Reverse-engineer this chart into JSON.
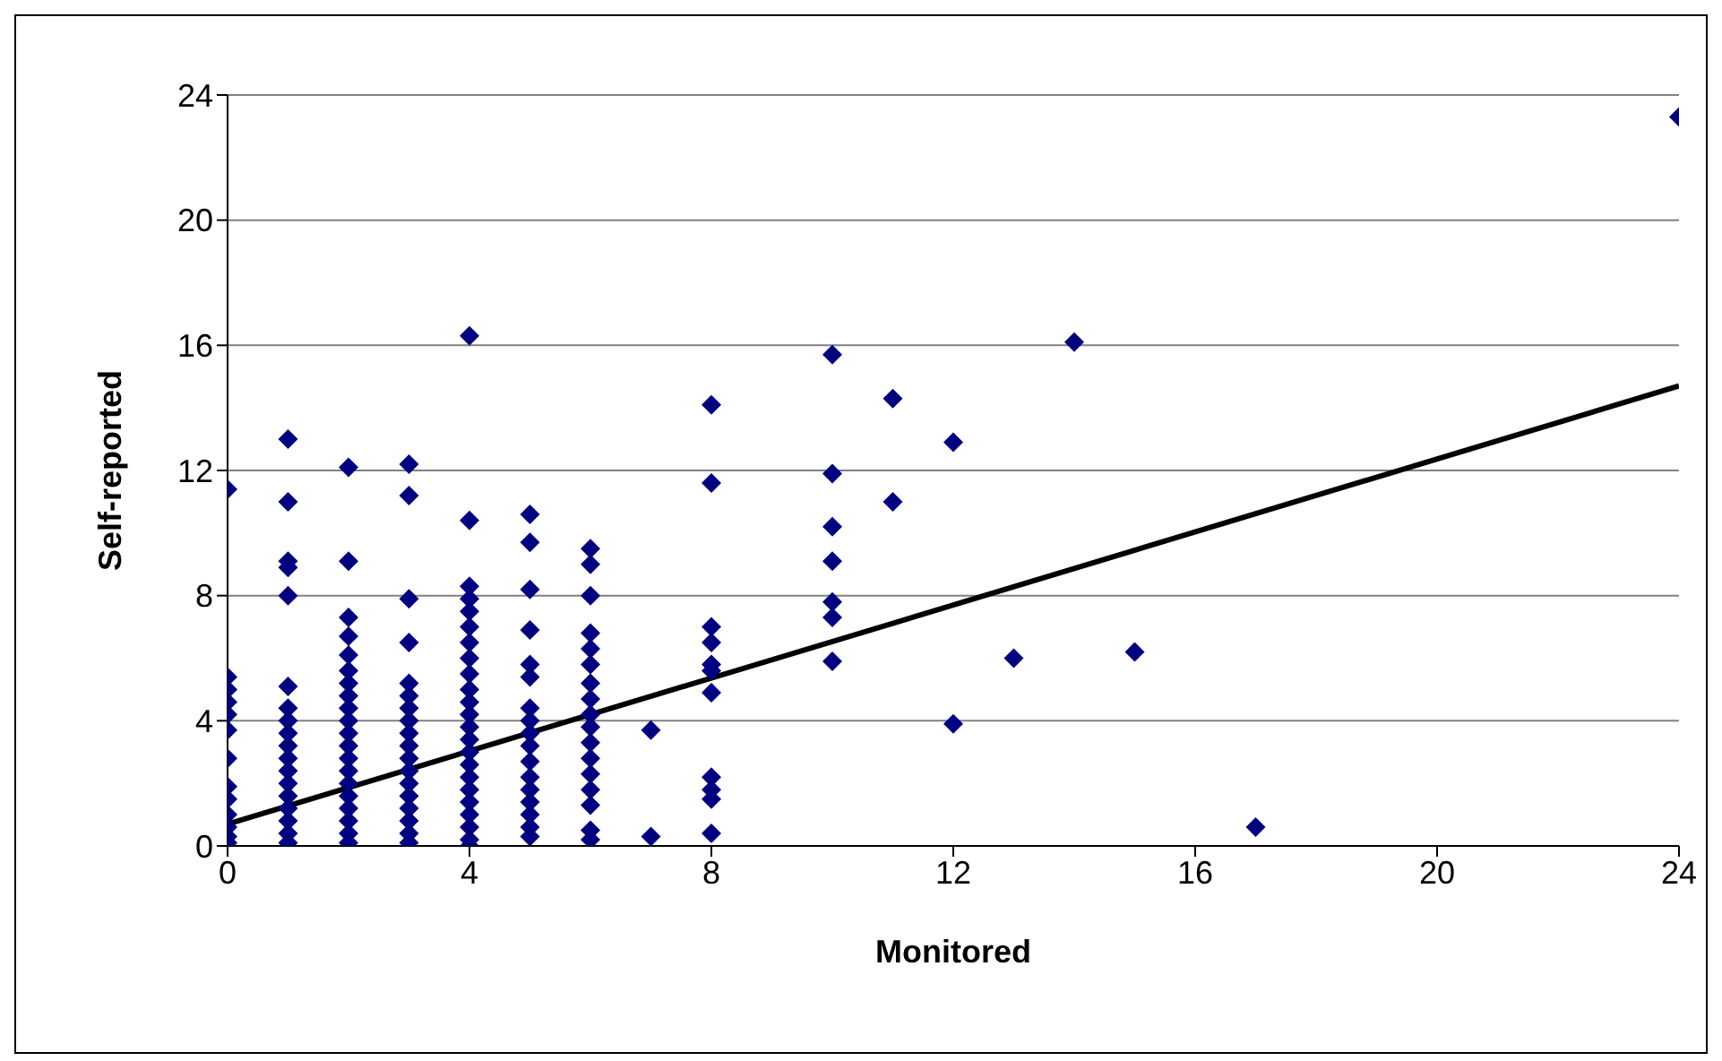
{
  "chart_data": {
    "type": "scatter",
    "xlabel": "Monitored",
    "ylabel": "Self-reported",
    "xlim": [
      0,
      24
    ],
    "ylim": [
      0,
      24
    ],
    "xticks": [
      0,
      4,
      8,
      12,
      16,
      20,
      24
    ],
    "yticks": [
      0,
      4,
      8,
      12,
      16,
      20,
      24
    ],
    "grid": "y",
    "legend": false,
    "series": [
      {
        "color": "#000080",
        "marker": "diamond",
        "x": [
          0,
          0,
          0,
          0,
          0,
          0,
          0,
          0,
          0,
          0,
          0,
          0,
          0,
          1,
          1,
          1,
          1,
          1,
          1,
          1,
          1,
          1,
          1,
          1,
          1,
          1,
          1,
          1,
          1,
          1,
          1,
          2,
          2,
          2,
          2,
          2,
          2,
          2,
          2,
          2,
          2,
          2,
          2,
          2,
          2,
          2,
          2,
          2,
          2,
          2,
          2,
          3,
          3,
          3,
          3,
          3,
          3,
          3,
          3,
          3,
          3,
          3,
          3,
          3,
          3,
          3,
          3,
          3,
          3,
          4,
          4,
          4,
          4,
          4,
          4,
          4,
          4,
          4,
          4,
          4,
          4,
          4,
          4,
          4,
          4,
          4,
          4,
          4,
          4,
          4,
          4,
          4,
          5,
          5,
          5,
          5,
          5,
          5,
          5,
          5,
          5,
          5,
          5,
          5,
          5,
          5,
          5,
          5,
          5,
          6,
          6,
          6,
          6,
          6,
          6,
          6,
          6,
          6,
          6,
          6,
          6,
          6,
          6,
          6,
          6,
          6,
          7,
          7,
          8,
          8,
          8,
          8,
          8,
          8,
          8,
          8,
          8,
          8,
          8,
          10,
          10,
          10,
          10,
          10,
          10,
          10,
          11,
          11,
          12,
          12,
          13,
          14,
          15,
          17,
          24
        ],
        "values": [
          11.4,
          5.4,
          5.0,
          4.6,
          4.2,
          3.7,
          2.8,
          1.9,
          1.5,
          1.0,
          0.6,
          0.3,
          0.1,
          13.0,
          11.0,
          9.1,
          8.9,
          8.0,
          5.1,
          4.4,
          4.0,
          3.6,
          3.2,
          2.8,
          2.4,
          2.0,
          1.6,
          1.2,
          0.8,
          0.4,
          0.1,
          12.1,
          9.1,
          7.3,
          6.7,
          6.1,
          5.6,
          5.2,
          4.8,
          4.4,
          4.0,
          3.6,
          3.2,
          2.8,
          2.4,
          2.0,
          1.6,
          1.2,
          0.8,
          0.4,
          0.1,
          12.2,
          11.2,
          7.9,
          6.5,
          5.2,
          4.8,
          4.4,
          4.0,
          3.6,
          3.2,
          2.8,
          2.4,
          2.0,
          1.6,
          1.2,
          0.8,
          0.4,
          0.1,
          16.3,
          10.4,
          8.3,
          7.9,
          7.5,
          7.0,
          6.5,
          6.0,
          5.5,
          5.0,
          4.6,
          4.2,
          3.8,
          3.4,
          3.0,
          2.6,
          2.2,
          1.8,
          1.4,
          1.0,
          0.6,
          0.2,
          0.0,
          10.6,
          9.7,
          8.2,
          6.9,
          5.8,
          5.4,
          4.4,
          4.0,
          3.6,
          3.2,
          2.7,
          2.2,
          1.8,
          1.4,
          1.0,
          0.6,
          0.3,
          9.5,
          9.0,
          8.0,
          6.8,
          6.3,
          5.8,
          5.2,
          4.7,
          4.2,
          3.8,
          3.3,
          2.8,
          2.3,
          1.8,
          1.3,
          0.5,
          0.2,
          3.7,
          0.3,
          14.1,
          11.6,
          7.0,
          6.5,
          5.8,
          5.6,
          4.9,
          2.2,
          1.8,
          1.5,
          0.4,
          15.7,
          11.9,
          10.2,
          9.1,
          7.8,
          7.3,
          5.9,
          14.3,
          11.0,
          12.9,
          3.9,
          6.0,
          16.1,
          6.2,
          0.6,
          23.3
        ]
      },
      {
        "type": "line",
        "marker": "none",
        "color": "#000000",
        "x": [
          0,
          24
        ],
        "values": [
          0.7,
          14.7
        ]
      }
    ]
  }
}
